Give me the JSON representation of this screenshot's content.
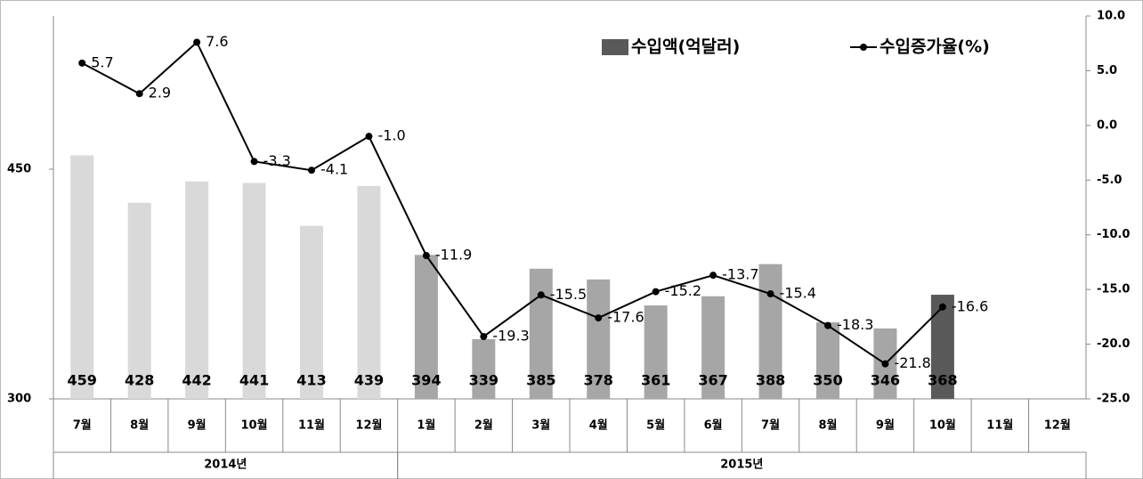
{
  "chart_data": {
    "type": "bar",
    "categories": [
      "7월",
      "8월",
      "9월",
      "10월",
      "11월",
      "12월",
      "1월",
      "2월",
      "3월",
      "4월",
      "5월",
      "6월",
      "7월",
      "8월",
      "9월",
      "10월",
      "11월",
      "12월"
    ],
    "groups": [
      {
        "label": "2014년",
        "span": 6
      },
      {
        "label": "2015년",
        "span": 12
      }
    ],
    "ylim": [
      300,
      550
    ],
    "yticks": [
      300,
      450
    ],
    "y2lim": [
      -25,
      10
    ],
    "y2ticks": [
      {
        "value": 10,
        "label": "10.0"
      },
      {
        "value": 5,
        "label": "5.0"
      },
      {
        "value": 0,
        "label": "0.0"
      },
      {
        "value": -5,
        "label": "-5.0"
      },
      {
        "value": -10,
        "label": "-10.0"
      },
      {
        "value": -15,
        "label": "-15.0"
      },
      {
        "value": -20,
        "label": "-20.0"
      },
      {
        "value": -25,
        "label": "-25.0"
      }
    ],
    "legend": "top-right",
    "series": [
      {
        "name": "수입액(억달러)",
        "type": "bar",
        "color": "#595959",
        "colors": [
          "#d9d9d9",
          "#d9d9d9",
          "#d9d9d9",
          "#d9d9d9",
          "#d9d9d9",
          "#d9d9d9",
          "#a6a6a6",
          "#a6a6a6",
          "#a6a6a6",
          "#a6a6a6",
          "#a6a6a6",
          "#a6a6a6",
          "#a6a6a6",
          "#a6a6a6",
          "#a6a6a6",
          "#595959",
          null,
          null
        ],
        "values": [
          459,
          428,
          442,
          441,
          413,
          439,
          394,
          339,
          385,
          378,
          361,
          367,
          388,
          350,
          346,
          368,
          null,
          null
        ]
      },
      {
        "name": "수입증가율(%)",
        "type": "line",
        "axis": "y2",
        "color": "#000000",
        "values": [
          5.7,
          2.9,
          7.6,
          -3.3,
          -4.1,
          -1.0,
          -11.9,
          -19.3,
          -15.5,
          -17.6,
          -15.2,
          -13.7,
          -15.4,
          -18.3,
          -21.8,
          -16.6,
          null,
          null
        ],
        "value_labels": [
          "5.7",
          "2.9",
          "7.6",
          "-3.3",
          "-4.1",
          "-1.0",
          "-11.9",
          "-19.3",
          "-15.5",
          "-17.6",
          "-15.2",
          "-13.7",
          "-15.4",
          "-18.3",
          "-21.8",
          "-16.6",
          null,
          null
        ]
      }
    ]
  }
}
